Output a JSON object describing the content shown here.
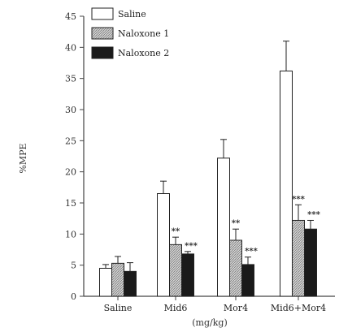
{
  "chart_data": {
    "type": "bar",
    "categories": [
      "Saline",
      "Mid6",
      "Mor4",
      "Mid6+Mor4"
    ],
    "series": [
      {
        "name": "Saline",
        "values": [
          4.5,
          16.5,
          22.2,
          36.2
        ],
        "errors": [
          0.6,
          2.0,
          3.0,
          4.8
        ],
        "labels": [
          "",
          "",
          "",
          ""
        ]
      },
      {
        "name": "Naloxone 1",
        "values": [
          5.3,
          8.3,
          9.0,
          12.2
        ],
        "errors": [
          1.1,
          1.2,
          1.8,
          2.5
        ],
        "labels": [
          "",
          "**",
          "**",
          "***"
        ]
      },
      {
        "name": "Naloxone 2",
        "values": [
          4.0,
          6.8,
          5.1,
          10.8
        ],
        "errors": [
          1.4,
          0.4,
          1.2,
          1.4
        ],
        "labels": [
          "",
          "***",
          "***",
          "***"
        ]
      }
    ],
    "xlabel": "(mg/kg)",
    "ylabel": "%MPE",
    "ylim": [
      0,
      45
    ],
    "yticks": [
      0,
      5,
      10,
      15,
      20,
      25,
      30,
      35,
      40,
      45
    ],
    "grid": false,
    "legend_position": "top-left",
    "colors": {
      "saline": "#ffffff",
      "naloxone1": "#bdbdbd",
      "naloxone2": "#1a1a1a",
      "axis": "#444444"
    }
  }
}
